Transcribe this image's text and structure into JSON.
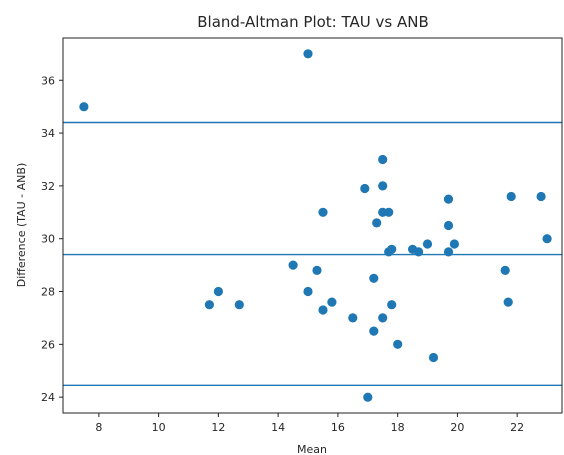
{
  "chart_data": {
    "type": "scatter",
    "title": "Bland-Altman Plot: TAU vs ANB",
    "xlabel": "Mean",
    "ylabel": "Difference (TAU - ANB)",
    "xlim": [
      6.8,
      23.5
    ],
    "ylim": [
      23.4,
      37.6
    ],
    "xticks": [
      8,
      10,
      12,
      14,
      16,
      18,
      20,
      22
    ],
    "yticks": [
      24,
      26,
      28,
      30,
      32,
      34,
      36
    ],
    "grid": false,
    "point_color": "#1f77b4",
    "line_color": "#1f77b4",
    "reference_lines": [
      {
        "y": 34.4
      },
      {
        "y": 29.4
      },
      {
        "y": 24.45
      }
    ],
    "points": [
      {
        "x": 7.5,
        "y": 35.0
      },
      {
        "x": 11.7,
        "y": 27.5
      },
      {
        "x": 12.0,
        "y": 28.0
      },
      {
        "x": 12.7,
        "y": 27.5
      },
      {
        "x": 14.5,
        "y": 29.0
      },
      {
        "x": 15.0,
        "y": 37.0
      },
      {
        "x": 15.0,
        "y": 28.0
      },
      {
        "x": 15.3,
        "y": 28.8
      },
      {
        "x": 15.5,
        "y": 31.0
      },
      {
        "x": 15.5,
        "y": 27.3
      },
      {
        "x": 15.8,
        "y": 27.6
      },
      {
        "x": 16.5,
        "y": 27.0
      },
      {
        "x": 16.9,
        "y": 31.9
      },
      {
        "x": 17.0,
        "y": 24.0
      },
      {
        "x": 17.2,
        "y": 28.5
      },
      {
        "x": 17.2,
        "y": 26.5
      },
      {
        "x": 17.3,
        "y": 30.6
      },
      {
        "x": 17.5,
        "y": 33.0
      },
      {
        "x": 17.5,
        "y": 32.0
      },
      {
        "x": 17.5,
        "y": 31.0
      },
      {
        "x": 17.5,
        "y": 27.0
      },
      {
        "x": 17.7,
        "y": 31.0
      },
      {
        "x": 17.8,
        "y": 29.6
      },
      {
        "x": 17.7,
        "y": 29.5
      },
      {
        "x": 17.8,
        "y": 27.5
      },
      {
        "x": 18.0,
        "y": 26.0
      },
      {
        "x": 18.5,
        "y": 29.6
      },
      {
        "x": 18.7,
        "y": 29.5
      },
      {
        "x": 19.0,
        "y": 29.8
      },
      {
        "x": 19.2,
        "y": 25.5
      },
      {
        "x": 19.7,
        "y": 31.5
      },
      {
        "x": 19.7,
        "y": 30.5
      },
      {
        "x": 19.7,
        "y": 29.5
      },
      {
        "x": 19.9,
        "y": 29.8
      },
      {
        "x": 21.6,
        "y": 28.8
      },
      {
        "x": 21.7,
        "y": 27.6
      },
      {
        "x": 21.8,
        "y": 31.6
      },
      {
        "x": 22.8,
        "y": 31.6
      },
      {
        "x": 23.0,
        "y": 30.0
      }
    ]
  }
}
